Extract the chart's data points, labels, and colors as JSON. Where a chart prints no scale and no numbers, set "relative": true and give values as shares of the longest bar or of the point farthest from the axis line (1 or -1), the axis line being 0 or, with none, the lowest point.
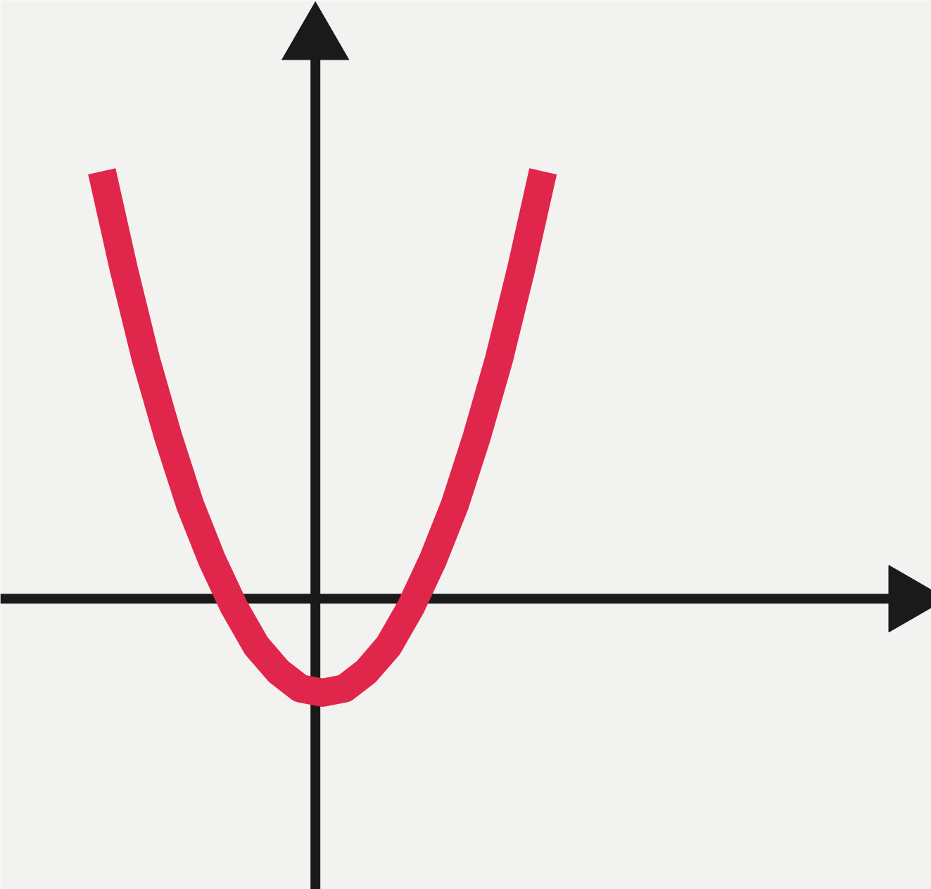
{
  "chart_data": {
    "type": "line",
    "relative": true,
    "categories": [
      null,
      null,
      null,
      null,
      null,
      null,
      null,
      null,
      null,
      null,
      null,
      null,
      null,
      null,
      null,
      null,
      null,
      null,
      null,
      null,
      null
    ],
    "values": [
      1,
      0.77,
      0.56,
      0.38,
      0.22,
      0.09,
      -0.02,
      -0.11,
      -0.17,
      -0.21,
      -0.22,
      -0.21,
      -0.17,
      -0.11,
      -0.02,
      0.09,
      0.22,
      0.38,
      0.56,
      0.77,
      1
    ],
    "color": "#e0264a"
  }
}
